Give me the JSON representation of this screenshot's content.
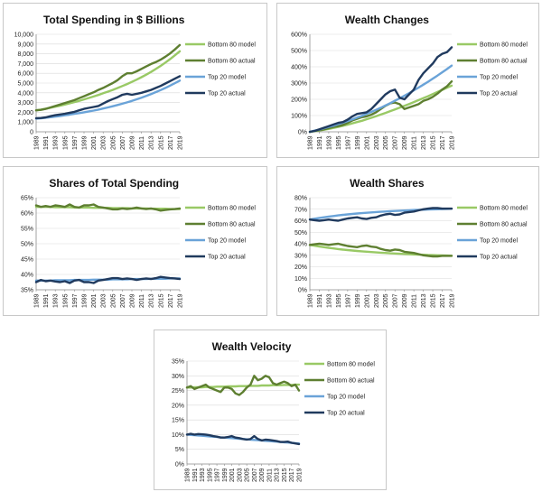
{
  "colors": {
    "bottom80_model": "#99c965",
    "bottom80_actual": "#5e7f31",
    "top20_model": "#6aa3d8",
    "top20_actual": "#203a5e"
  },
  "chart_data": [
    {
      "type": "line",
      "title": "Total Spending in $ Billions",
      "x": [
        1989,
        1990,
        1991,
        1992,
        1993,
        1994,
        1995,
        1996,
        1997,
        1998,
        1999,
        2000,
        2001,
        2002,
        2003,
        2004,
        2005,
        2006,
        2007,
        2008,
        2009,
        2010,
        2011,
        2012,
        2013,
        2014,
        2015,
        2016,
        2017,
        2018,
        2019
      ],
      "xticks": [
        "1989",
        "1991",
        "1993",
        "1995",
        "1997",
        "1999",
        "2001",
        "2003",
        "2005",
        "2007",
        "2009",
        "2011",
        "2013",
        "2015",
        "2017",
        "2019"
      ],
      "ylim": [
        0,
        10000
      ],
      "yticks": [
        0,
        1000,
        2000,
        3000,
        4000,
        5000,
        6000,
        7000,
        8000,
        9000,
        10000
      ],
      "ytick_labels": [
        "0",
        "1,000",
        "2,000",
        "3,000",
        "4,000",
        "5,000",
        "6,000",
        "7,000",
        "8,000",
        "9,000",
        "10,000"
      ],
      "series": [
        {
          "name": "Bottom 80 model",
          "values": [
            2200,
            2280,
            2370,
            2470,
            2570,
            2680,
            2800,
            2920,
            3050,
            3180,
            3320,
            3470,
            3620,
            3780,
            3950,
            4120,
            4300,
            4490,
            4690,
            4900,
            5120,
            5350,
            5600,
            5860,
            6140,
            6440,
            6760,
            7100,
            7460,
            7850,
            8260
          ]
        },
        {
          "name": "Bottom 80 actual",
          "values": [
            2200,
            2250,
            2350,
            2500,
            2650,
            2800,
            2950,
            3100,
            3250,
            3450,
            3650,
            3850,
            4050,
            4300,
            4500,
            4750,
            5000,
            5300,
            5700,
            6000,
            6000,
            6200,
            6450,
            6700,
            6950,
            7150,
            7400,
            7700,
            8050,
            8450,
            8900
          ]
        },
        {
          "name": "Top 20 model",
          "values": [
            1350,
            1390,
            1440,
            1500,
            1560,
            1620,
            1690,
            1760,
            1840,
            1920,
            2000,
            2090,
            2180,
            2280,
            2390,
            2500,
            2620,
            2750,
            2880,
            3020,
            3170,
            3330,
            3500,
            3680,
            3870,
            4070,
            4280,
            4500,
            4740,
            4990,
            5250
          ]
        },
        {
          "name": "Top 20 actual",
          "values": [
            1400,
            1420,
            1480,
            1600,
            1700,
            1780,
            1850,
            1950,
            2050,
            2200,
            2350,
            2450,
            2550,
            2650,
            2900,
            3150,
            3350,
            3550,
            3800,
            3900,
            3800,
            3900,
            4000,
            4150,
            4300,
            4500,
            4700,
            4950,
            5200,
            5450,
            5700
          ]
        }
      ]
    },
    {
      "type": "line",
      "title": "Wealth Changes",
      "x": [
        1989,
        1990,
        1991,
        1992,
        1993,
        1994,
        1995,
        1996,
        1997,
        1998,
        1999,
        2000,
        2001,
        2002,
        2003,
        2004,
        2005,
        2006,
        2007,
        2008,
        2009,
        2010,
        2011,
        2012,
        2013,
        2014,
        2015,
        2016,
        2017,
        2018,
        2019
      ],
      "xticks": [
        "1989",
        "1991",
        "1993",
        "1995",
        "1997",
        "1999",
        "2001",
        "2003",
        "2005",
        "2007",
        "2009",
        "2011",
        "2013",
        "2015",
        "2017",
        "2019"
      ],
      "ylim": [
        0,
        600
      ],
      "yticks": [
        0,
        100,
        200,
        300,
        400,
        500,
        600
      ],
      "ytick_labels": [
        "0%",
        "100%",
        "200%",
        "300%",
        "400%",
        "500%",
        "600%"
      ],
      "series": [
        {
          "name": "Bottom 80 model",
          "values": [
            0,
            4,
            8,
            13,
            18,
            24,
            30,
            37,
            44,
            52,
            60,
            68,
            77,
            86,
            96,
            106,
            116,
            127,
            138,
            149,
            160,
            171,
            183,
            195,
            207,
            219,
            232,
            245,
            258,
            271,
            284
          ]
        },
        {
          "name": "Bottom 80 actual",
          "values": [
            0,
            5,
            10,
            15,
            22,
            30,
            35,
            42,
            55,
            70,
            80,
            90,
            95,
            105,
            120,
            140,
            160,
            175,
            180,
            170,
            140,
            150,
            160,
            170,
            190,
            200,
            215,
            235,
            260,
            280,
            310
          ]
        },
        {
          "name": "Top 20 model",
          "values": [
            0,
            7,
            14,
            22,
            30,
            38,
            47,
            56,
            66,
            76,
            87,
            98,
            110,
            122,
            135,
            148,
            162,
            176,
            191,
            206,
            222,
            238,
            255,
            272,
            290,
            308,
            327,
            346,
            366,
            386,
            407
          ]
        },
        {
          "name": "Top 20 actual",
          "values": [
            0,
            5,
            15,
            25,
            35,
            45,
            55,
            60,
            75,
            95,
            110,
            115,
            120,
            140,
            170,
            200,
            230,
            250,
            260,
            210,
            200,
            230,
            260,
            320,
            360,
            390,
            420,
            460,
            480,
            490,
            520
          ]
        }
      ]
    },
    {
      "type": "line",
      "title": "Shares of Total Spending",
      "x": [
        1989,
        1990,
        1991,
        1992,
        1993,
        1994,
        1995,
        1996,
        1997,
        1998,
        1999,
        2000,
        2001,
        2002,
        2003,
        2004,
        2005,
        2006,
        2007,
        2008,
        2009,
        2010,
        2011,
        2012,
        2013,
        2014,
        2015,
        2016,
        2017,
        2018,
        2019
      ],
      "xticks": [
        "1989",
        "1991",
        "1993",
        "1995",
        "1997",
        "1999",
        "2001",
        "2003",
        "2005",
        "2007",
        "2009",
        "2011",
        "2013",
        "2015",
        "2017",
        "2019"
      ],
      "ylim": [
        35,
        65
      ],
      "yticks": [
        35,
        40,
        45,
        50,
        55,
        60,
        65
      ],
      "ytick_labels": [
        "35%",
        "40%",
        "45%",
        "50%",
        "55%",
        "60%",
        "65%"
      ],
      "series": [
        {
          "name": "Bottom 80 model",
          "values": [
            62.0,
            62.0,
            62.0,
            62.0,
            61.9,
            61.9,
            61.9,
            61.9,
            61.8,
            61.8,
            61.8,
            61.8,
            61.7,
            61.7,
            61.7,
            61.7,
            61.6,
            61.6,
            61.6,
            61.6,
            61.5,
            61.5,
            61.5,
            61.5,
            61.4,
            61.4,
            61.4,
            61.4,
            61.3,
            61.3,
            61.3
          ]
        },
        {
          "name": "Bottom 80 actual",
          "values": [
            62.5,
            62.0,
            62.3,
            62.0,
            62.5,
            62.3,
            62.0,
            62.8,
            62.0,
            61.8,
            62.5,
            62.5,
            62.8,
            62.0,
            61.8,
            61.5,
            61.2,
            61.2,
            61.5,
            61.3,
            61.5,
            61.8,
            61.5,
            61.3,
            61.5,
            61.2,
            60.8,
            61.0,
            61.2,
            61.3,
            61.5
          ]
        },
        {
          "name": "Top 20 model",
          "values": [
            38.0,
            38.0,
            38.0,
            38.0,
            38.1,
            38.1,
            38.1,
            38.1,
            38.2,
            38.2,
            38.2,
            38.2,
            38.3,
            38.3,
            38.3,
            38.3,
            38.4,
            38.4,
            38.4,
            38.4,
            38.5,
            38.5,
            38.5,
            38.5,
            38.6,
            38.6,
            38.6,
            38.6,
            38.7,
            38.7,
            38.7
          ]
        },
        {
          "name": "Top 20 actual",
          "values": [
            37.5,
            38.2,
            37.8,
            38.0,
            37.7,
            37.5,
            37.8,
            37.2,
            38.0,
            38.2,
            37.5,
            37.5,
            37.2,
            38.0,
            38.2,
            38.5,
            38.8,
            38.8,
            38.5,
            38.7,
            38.5,
            38.2,
            38.5,
            38.7,
            38.5,
            38.8,
            39.2,
            39.0,
            38.8,
            38.7,
            38.5
          ]
        }
      ]
    },
    {
      "type": "line",
      "title": "Wealth Shares",
      "x": [
        1989,
        1990,
        1991,
        1992,
        1993,
        1994,
        1995,
        1996,
        1997,
        1998,
        1999,
        2000,
        2001,
        2002,
        2003,
        2004,
        2005,
        2006,
        2007,
        2008,
        2009,
        2010,
        2011,
        2012,
        2013,
        2014,
        2015,
        2016,
        2017,
        2018,
        2019
      ],
      "xticks": [
        "1989",
        "1991",
        "1993",
        "1995",
        "1997",
        "1999",
        "2001",
        "2003",
        "2005",
        "2007",
        "2009",
        "2011",
        "2013",
        "2015",
        "2017",
        "2019"
      ],
      "ylim": [
        0,
        80
      ],
      "yticks": [
        0,
        10,
        20,
        30,
        40,
        50,
        60,
        70,
        80
      ],
      "ytick_labels": [
        "0%",
        "10%",
        "20%",
        "30%",
        "40%",
        "50%",
        "60%",
        "70%",
        "80%"
      ],
      "series": [
        {
          "name": "Bottom 80 model",
          "values": [
            39.0,
            38.3,
            37.6,
            37.0,
            36.4,
            35.9,
            35.4,
            34.9,
            34.5,
            34.1,
            33.7,
            33.4,
            33.1,
            32.8,
            32.5,
            32.2,
            32.0,
            31.7,
            31.5,
            31.3,
            31.1,
            30.9,
            30.7,
            30.5,
            30.4,
            30.2,
            30.1,
            30.0,
            29.8,
            29.7,
            29.6
          ]
        },
        {
          "name": "Bottom 80 actual",
          "values": [
            39.0,
            39.5,
            40.0,
            39.5,
            39.0,
            39.5,
            40.0,
            39.0,
            38.0,
            37.5,
            37.0,
            38.0,
            38.5,
            37.5,
            37.0,
            35.5,
            34.5,
            34.0,
            35.0,
            34.5,
            33.0,
            32.5,
            32.0,
            31.0,
            30.0,
            29.5,
            29.0,
            29.0,
            29.5,
            29.5,
            29.5
          ]
        },
        {
          "name": "Top 20 model",
          "values": [
            61.0,
            61.7,
            62.4,
            63.0,
            63.6,
            64.1,
            64.6,
            65.1,
            65.5,
            65.9,
            66.3,
            66.6,
            66.9,
            67.2,
            67.5,
            67.8,
            68.0,
            68.3,
            68.5,
            68.7,
            68.9,
            69.1,
            69.3,
            69.5,
            69.6,
            69.8,
            69.9,
            70.0,
            70.2,
            70.3,
            70.4
          ]
        },
        {
          "name": "Top 20 actual",
          "values": [
            61.0,
            60.5,
            60.0,
            60.5,
            61.0,
            60.5,
            60.0,
            61.0,
            62.0,
            62.5,
            63.0,
            62.0,
            61.5,
            62.5,
            63.0,
            64.5,
            65.5,
            66.0,
            65.0,
            65.5,
            67.0,
            67.5,
            68.0,
            69.0,
            70.0,
            70.5,
            71.0,
            71.0,
            70.5,
            70.5,
            70.5
          ]
        }
      ]
    },
    {
      "type": "line",
      "title": "Wealth Velocity",
      "x": [
        1989,
        1990,
        1991,
        1992,
        1993,
        1994,
        1995,
        1996,
        1997,
        1998,
        1999,
        2000,
        2001,
        2002,
        2003,
        2004,
        2005,
        2006,
        2007,
        2008,
        2009,
        2010,
        2011,
        2012,
        2013,
        2014,
        2015,
        2016,
        2017,
        2018,
        2019
      ],
      "xticks": [
        "1989",
        "1991",
        "1993",
        "1995",
        "1997",
        "1999",
        "2001",
        "2003",
        "2005",
        "2007",
        "2009",
        "2011",
        "2013",
        "2015",
        "2017",
        "2019"
      ],
      "ylim": [
        0,
        35
      ],
      "yticks": [
        0,
        5,
        10,
        15,
        20,
        25,
        30,
        35
      ],
      "ytick_labels": [
        "0%",
        "5%",
        "10%",
        "15%",
        "20%",
        "25%",
        "30%",
        "35%"
      ],
      "series": [
        {
          "name": "Bottom 80 model",
          "values": [
            26.0,
            26.0,
            26.1,
            26.1,
            26.1,
            26.2,
            26.2,
            26.2,
            26.3,
            26.3,
            26.3,
            26.4,
            26.4,
            26.4,
            26.5,
            26.5,
            26.5,
            26.6,
            26.6,
            26.6,
            26.7,
            26.7,
            26.7,
            26.8,
            26.8,
            26.8,
            26.9,
            26.9,
            26.9,
            27.0,
            27.0
          ]
        },
        {
          "name": "Bottom 80 actual",
          "values": [
            26.0,
            26.5,
            25.5,
            26.0,
            26.5,
            27.0,
            26.0,
            25.5,
            25.0,
            24.5,
            26.0,
            26.0,
            25.5,
            24.0,
            23.5,
            24.5,
            26.0,
            27.0,
            30.0,
            28.5,
            29.0,
            30.0,
            29.5,
            27.5,
            27.0,
            27.5,
            28.0,
            27.5,
            26.5,
            27.0,
            25.0
          ]
        },
        {
          "name": "Top 20 model",
          "values": [
            10.0,
            9.9,
            9.8,
            9.7,
            9.6,
            9.5,
            9.4,
            9.3,
            9.2,
            9.1,
            9.0,
            8.9,
            8.8,
            8.7,
            8.6,
            8.5,
            8.4,
            8.3,
            8.2,
            8.1,
            8.0,
            7.9,
            7.8,
            7.7,
            7.6,
            7.5,
            7.4,
            7.3,
            7.2,
            7.1,
            7.0
          ]
        },
        {
          "name": "Top 20 actual",
          "values": [
            10.0,
            10.3,
            10.0,
            10.2,
            10.1,
            10.0,
            9.8,
            9.5,
            9.3,
            9.0,
            9.0,
            9.2,
            9.5,
            9.0,
            8.8,
            8.5,
            8.3,
            8.5,
            9.5,
            8.5,
            8.0,
            8.3,
            8.2,
            8.0,
            7.8,
            7.5,
            7.5,
            7.6,
            7.2,
            7.0,
            6.8
          ]
        }
      ]
    }
  ]
}
